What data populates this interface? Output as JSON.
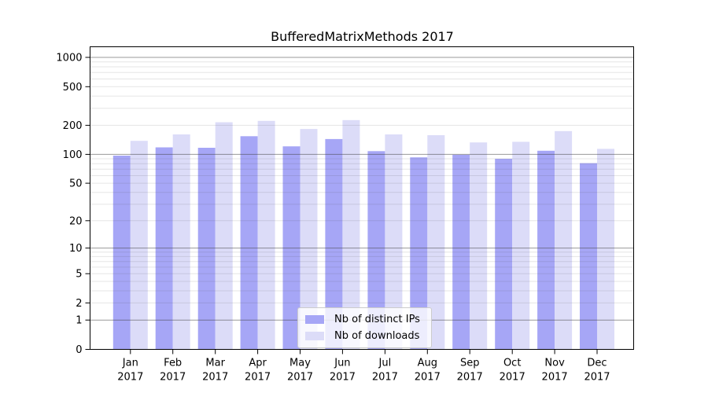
{
  "chart_data": {
    "type": "bar",
    "title": "BufferedMatrixMethods 2017",
    "categories": [
      "Jan",
      "Feb",
      "Mar",
      "Apr",
      "May",
      "Jun",
      "Jul",
      "Aug",
      "Sep",
      "Oct",
      "Nov",
      "Dec"
    ],
    "category_year": "2017",
    "series": [
      {
        "name": "Nb of distinct IPs",
        "color": "#a6a6f6",
        "values": [
          97,
          118,
          117,
          154,
          121,
          144,
          108,
          93,
          99,
          90,
          109,
          81
        ]
      },
      {
        "name": "Nb of downloads",
        "color": "#dcdcf8",
        "values": [
          138,
          161,
          215,
          222,
          183,
          226,
          161,
          158,
          133,
          135,
          174,
          114
        ]
      }
    ],
    "yscale": "log1p",
    "yticks": [
      1000,
      500,
      200,
      100,
      50,
      20,
      10,
      5,
      2,
      1,
      0
    ],
    "ylim": [
      0,
      1100
    ],
    "grid": true,
    "legend_position": "lower center"
  },
  "colors": {
    "major_gridline": "rgba(70,70,70,0.55)",
    "minor_gridline": "rgba(80,80,80,0.15)",
    "axis": "#000000"
  }
}
